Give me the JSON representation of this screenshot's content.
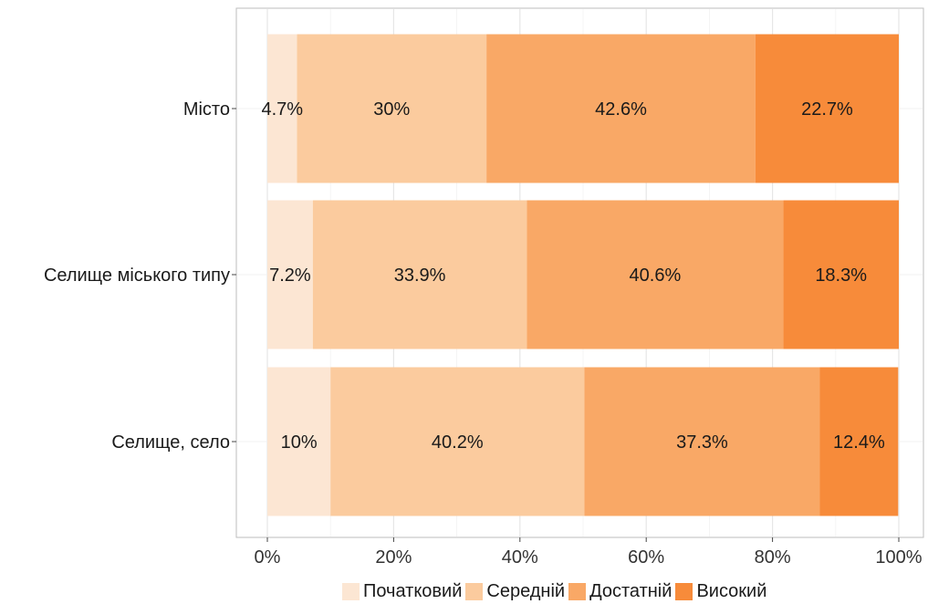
{
  "chart_data": {
    "type": "bar",
    "orientation": "horizontal",
    "stacked": true,
    "categories": [
      "Місто",
      "Селище міського типу",
      "Селище, село"
    ],
    "series": [
      {
        "name": "Початковий",
        "color": "#FCE6D3",
        "values": [
          4.7,
          7.2,
          10.0
        ],
        "labels": [
          "4.7%",
          "7.2%",
          "10%"
        ]
      },
      {
        "name": "Середній",
        "color": "#FBCB9E",
        "values": [
          30.0,
          33.9,
          40.2
        ],
        "labels": [
          "30%",
          "33.9%",
          "40.2%"
        ]
      },
      {
        "name": "Достатній",
        "color": "#F9A866",
        "values": [
          42.6,
          40.6,
          37.3
        ],
        "labels": [
          "42.6%",
          "40.6%",
          "37.3%"
        ]
      },
      {
        "name": "Високий",
        "color": "#F78B3A",
        "values": [
          22.7,
          18.3,
          12.4
        ],
        "labels": [
          "22.7%",
          "18.3%",
          "12.4%"
        ]
      }
    ],
    "x_ticks": [
      "0%",
      "20%",
      "40%",
      "60%",
      "80%",
      "100%"
    ],
    "xlim": [
      0,
      100
    ],
    "title": "",
    "xlabel": "",
    "ylabel": "",
    "grid": true,
    "legend": "bottom"
  }
}
